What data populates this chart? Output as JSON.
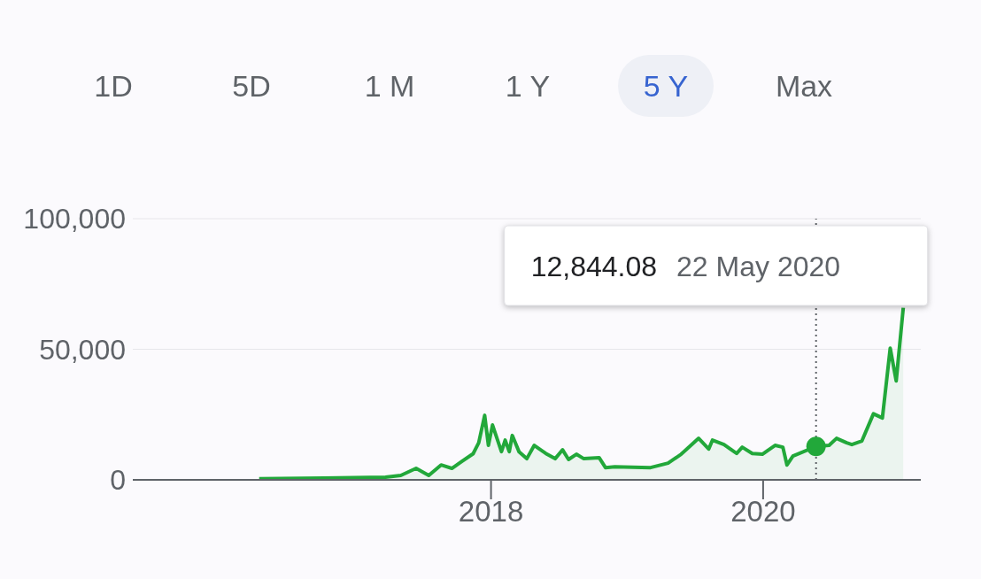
{
  "chart_data": {
    "type": "area",
    "x": [
      "2016-04-19",
      "2016-10-10",
      "2017-03-24",
      "2017-05-04",
      "2017-06-14",
      "2017-07-18",
      "2017-08-20",
      "2017-09-18",
      "2017-10-14",
      "2017-11-14",
      "2017-11-29",
      "2017-12-15",
      "2017-12-25",
      "2018-01-05",
      "2018-01-29",
      "2018-02-08",
      "2018-02-19",
      "2018-02-27",
      "2018-03-17",
      "2018-04-07",
      "2018-04-27",
      "2018-05-28",
      "2018-06-22",
      "2018-07-12",
      "2018-07-28",
      "2018-08-18",
      "2018-09-07",
      "2018-10-18",
      "2018-11-04",
      "2018-11-29",
      "2019-03-05",
      "2019-04-21",
      "2019-05-26",
      "2019-07-12",
      "2019-08-08",
      "2019-08-18",
      "2019-09-18",
      "2019-10-22",
      "2019-11-06",
      "2019-12-03",
      "2019-12-30",
      "2020-02-02",
      "2020-02-23",
      "2020-03-05",
      "2020-03-21",
      "2020-05-22",
      "2020-06-26",
      "2020-07-16",
      "2020-08-12",
      "2020-08-26",
      "2020-09-22",
      "2020-10-23",
      "2020-11-16",
      "2020-12-07",
      "2020-12-23",
      "2021-01-11"
    ],
    "series": [
      {
        "color": "#22a83a",
        "values": [
          400,
          700,
          1000,
          1700,
          4400,
          1700,
          5700,
          4400,
          7000,
          10000,
          14200,
          24700,
          13200,
          21000,
          10800,
          15200,
          10800,
          17000,
          10800,
          8100,
          13200,
          10100,
          8100,
          11500,
          7800,
          9800,
          8100,
          8500,
          4700,
          5000,
          4700,
          6400,
          9800,
          15900,
          11800,
          15200,
          13500,
          10100,
          12500,
          10100,
          9800,
          13200,
          12500,
          5700,
          9100,
          12800,
          13200,
          15900,
          14200,
          13500,
          14900,
          25300,
          23700,
          50400,
          37900,
          65900
        ]
      }
    ],
    "xlim": [
      "2015-05-16",
      "2021-02-27"
    ],
    "xticks": [
      {
        "value": "2018-01-01",
        "label": "2018"
      },
      {
        "value": "2020-01-01",
        "label": "2020"
      }
    ],
    "ylim": [
      0,
      100000
    ],
    "yticks": [
      0,
      {
        "value": 50000,
        "label": "50,000"
      },
      {
        "value": 100000,
        "label": "100,000"
      }
    ],
    "grid": "y",
    "ref_lines": [
      {
        "axis": "x",
        "value": "2020-05-22",
        "color": "#5f6368",
        "line_style": "dotted"
      }
    ],
    "annotations": [
      "1D",
      "5D",
      "1 M",
      "1 Y",
      "5 Y",
      "Max",
      "12,844.08",
      "22 May 2020"
    ]
  }
}
